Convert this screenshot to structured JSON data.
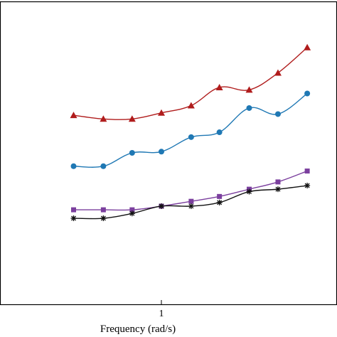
{
  "chart_data": {
    "type": "line",
    "xlabel": "Frequency (rad/s)",
    "x_scale": "log",
    "x_tick_labels": [
      "1"
    ],
    "x": [
      0.25,
      0.4,
      0.63,
      1.0,
      1.6,
      2.5,
      4.0,
      6.3,
      10
    ],
    "grid": false,
    "legend": "none",
    "series": [
      {
        "color": "#b01c1c",
        "marker": "triangle",
        "values": [
          0.78,
          0.765,
          0.765,
          0.79,
          0.82,
          0.895,
          0.885,
          0.955,
          1.06
        ]
      },
      {
        "color": "#1f78b4",
        "marker": "circle",
        "values": [
          0.57,
          0.57,
          0.625,
          0.63,
          0.69,
          0.71,
          0.81,
          0.785,
          0.87
        ]
      },
      {
        "color": "#7b3f9e",
        "marker": "square",
        "values": [
          0.39,
          0.39,
          0.39,
          0.405,
          0.425,
          0.445,
          0.475,
          0.505,
          0.55
        ]
      },
      {
        "color": "#111111",
        "marker": "star",
        "values": [
          0.355,
          0.355,
          0.375,
          0.405,
          0.405,
          0.42,
          0.465,
          0.475,
          0.49
        ]
      }
    ]
  }
}
